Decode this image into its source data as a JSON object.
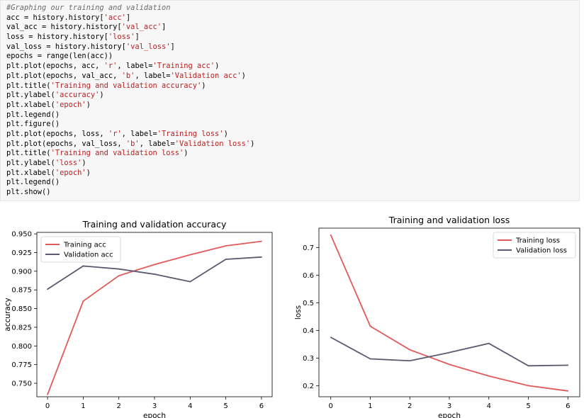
{
  "code_cell": {
    "lines": [
      [
        {
          "t": "#Graphing our training and validation",
          "c": "cmt"
        }
      ],
      [
        {
          "t": "acc = history.history["
        },
        {
          "t": "'acc'",
          "c": "str"
        },
        {
          "t": "]"
        }
      ],
      [
        {
          "t": "val_acc = history.history["
        },
        {
          "t": "'val_acc'",
          "c": "str"
        },
        {
          "t": "]"
        }
      ],
      [
        {
          "t": "loss = history.history["
        },
        {
          "t": "'loss'",
          "c": "str"
        },
        {
          "t": "]"
        }
      ],
      [
        {
          "t": "val_loss = history.history["
        },
        {
          "t": "'val_loss'",
          "c": "str"
        },
        {
          "t": "]"
        }
      ],
      [
        {
          "t": "epochs = range(len(acc))"
        }
      ],
      [
        {
          "t": "plt.plot(epochs, acc, "
        },
        {
          "t": "'r'",
          "c": "str"
        },
        {
          "t": ", label="
        },
        {
          "t": "'Training acc'",
          "c": "str"
        },
        {
          "t": ")"
        }
      ],
      [
        {
          "t": "plt.plot(epochs, val_acc, "
        },
        {
          "t": "'b'",
          "c": "str"
        },
        {
          "t": ", label="
        },
        {
          "t": "'Validation acc'",
          "c": "str"
        },
        {
          "t": ")"
        }
      ],
      [
        {
          "t": "plt.title("
        },
        {
          "t": "'Training and validation accuracy'",
          "c": "str"
        },
        {
          "t": ")"
        }
      ],
      [
        {
          "t": "plt.ylabel("
        },
        {
          "t": "'accuracy'",
          "c": "str"
        },
        {
          "t": ")"
        }
      ],
      [
        {
          "t": "plt.xlabel("
        },
        {
          "t": "'epoch'",
          "c": "str"
        },
        {
          "t": ")"
        }
      ],
      [
        {
          "t": "plt.legend()"
        }
      ],
      [
        {
          "t": "plt.figure()"
        }
      ],
      [
        {
          "t": "plt.plot(epochs, loss, "
        },
        {
          "t": "'r'",
          "c": "str"
        },
        {
          "t": ", label="
        },
        {
          "t": "'Training loss'",
          "c": "str"
        },
        {
          "t": ")"
        }
      ],
      [
        {
          "t": "plt.plot(epochs, val_loss, "
        },
        {
          "t": "'b'",
          "c": "str"
        },
        {
          "t": ", label="
        },
        {
          "t": "'Validation loss'",
          "c": "str"
        },
        {
          "t": ")"
        }
      ],
      [
        {
          "t": "plt.title("
        },
        {
          "t": "'Training and validation loss'",
          "c": "str"
        },
        {
          "t": ")"
        }
      ],
      [
        {
          "t": "plt.ylabel("
        },
        {
          "t": "'loss'",
          "c": "str"
        },
        {
          "t": ")"
        }
      ],
      [
        {
          "t": "plt.xlabel("
        },
        {
          "t": "'epoch'",
          "c": "str"
        },
        {
          "t": ")"
        }
      ],
      [
        {
          "t": "plt.legend()"
        }
      ],
      [
        {
          "t": "plt.show()"
        }
      ]
    ]
  },
  "colors": {
    "code_bg": "#f7f7f7",
    "comment": "#6b6b6b",
    "string": "#ba2121",
    "training": "#e05a5a",
    "validation": "#5a5a70",
    "axis": "#000000"
  },
  "chart_data": [
    {
      "type": "line",
      "title": "Training and validation accuracy",
      "xlabel": "epoch",
      "ylabel": "accuracy",
      "x": [
        0,
        1,
        2,
        3,
        4,
        5,
        6
      ],
      "xticks": [
        "0",
        "1",
        "2",
        "3",
        "4",
        "5",
        "6"
      ],
      "yticks": [
        "0.750",
        "0.775",
        "0.800",
        "0.825",
        "0.850",
        "0.875",
        "0.900",
        "0.925",
        "0.950"
      ],
      "ytick_values": [
        0.75,
        0.775,
        0.8,
        0.825,
        0.85,
        0.875,
        0.9,
        0.925,
        0.95
      ],
      "xlim": [
        -0.3,
        6.3
      ],
      "ylim": [
        0.732,
        0.952
      ],
      "grid": false,
      "legend_placement": "upper-left",
      "series": [
        {
          "name": "Training acc",
          "color": "#e05a5a",
          "values": [
            0.735,
            0.86,
            0.894,
            0.909,
            0.922,
            0.934,
            0.94
          ]
        },
        {
          "name": "Validation acc",
          "color": "#5a5a70",
          "values": [
            0.876,
            0.907,
            0.903,
            0.896,
            0.886,
            0.916,
            0.919
          ]
        }
      ]
    },
    {
      "type": "line",
      "title": "Training and validation loss",
      "xlabel": "epoch",
      "ylabel": "loss",
      "x": [
        0,
        1,
        2,
        3,
        4,
        5,
        6
      ],
      "xticks": [
        "0",
        "1",
        "2",
        "3",
        "4",
        "5",
        "6"
      ],
      "yticks": [
        "0.2",
        "0.3",
        "0.4",
        "0.5",
        "0.6",
        "0.7"
      ],
      "ytick_values": [
        0.2,
        0.3,
        0.4,
        0.5,
        0.6,
        0.7
      ],
      "xlim": [
        -0.3,
        6.3
      ],
      "ylim": [
        0.16,
        0.77
      ],
      "grid": false,
      "legend_placement": "upper-right",
      "series": [
        {
          "name": "Training loss",
          "color": "#e05a5a",
          "values": [
            0.745,
            0.415,
            0.33,
            0.277,
            0.235,
            0.2,
            0.181
          ]
        },
        {
          "name": "Validation loss",
          "color": "#5a5a70",
          "values": [
            0.375,
            0.297,
            0.29,
            0.32,
            0.353,
            0.272,
            0.274
          ]
        }
      ]
    }
  ]
}
